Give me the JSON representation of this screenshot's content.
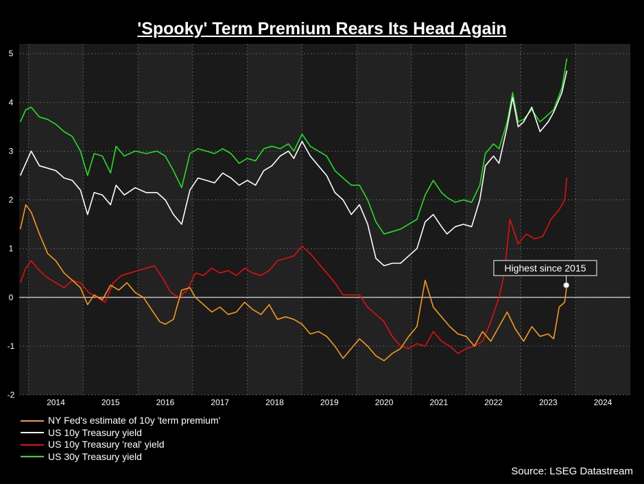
{
  "title": "'Spooky' Term Premium Rears Its Head Again",
  "source": "Source: LSEG Datastream",
  "colors": {
    "background": "#000000",
    "plot_bg": "#1a1a1a",
    "plot_bg_alt": "#222222",
    "grid": "#5a5a5a",
    "orange": "#f59a1e",
    "white": "#ffffff",
    "red": "#e01010",
    "green": "#22e022"
  },
  "chart_data": {
    "type": "line",
    "title": "'Spooky' Term Premium Rears Its Head Again",
    "xlabel": "",
    "ylabel": "",
    "xlim": [
      2013.33,
      2024.5
    ],
    "ylim": [
      -2,
      5.2
    ],
    "yticks": [
      -2,
      -1,
      0,
      1,
      2,
      3,
      4,
      5
    ],
    "ytick_labels": [
      "-2",
      "-1",
      "0",
      "1",
      "2",
      "3",
      "4",
      "5"
    ],
    "xticks": [
      2014,
      2015,
      2016,
      2017,
      2018,
      2019,
      2020,
      2021,
      2022,
      2023,
      2024
    ],
    "xtick_labels": [
      "2014",
      "2015",
      "2016",
      "2017",
      "2018",
      "2019",
      "2020",
      "2021",
      "2022",
      "2023",
      "2024"
    ],
    "grid": true,
    "legend_position": "bottom-left",
    "reference_line": {
      "y": 0
    },
    "annotation": {
      "text": "Highest since 2015",
      "x": 2023.33,
      "y": 0.25
    },
    "series": [
      {
        "name": "NY Fed's estimate of 10y 'term premium'",
        "color": "#f59a1e",
        "x": [
          2013.35,
          2013.45,
          2013.55,
          2013.7,
          2013.85,
          2014.0,
          2014.15,
          2014.3,
          2014.45,
          2014.58,
          2014.7,
          2014.85,
          2015.0,
          2015.15,
          2015.3,
          2015.45,
          2015.6,
          2015.75,
          2015.9,
          2016.0,
          2016.15,
          2016.3,
          2016.45,
          2016.55,
          2016.7,
          2016.85,
          2017.0,
          2017.15,
          2017.3,
          2017.45,
          2017.6,
          2017.75,
          2017.9,
          2018.05,
          2018.2,
          2018.35,
          2018.5,
          2018.65,
          2018.8,
          2018.95,
          2019.1,
          2019.25,
          2019.4,
          2019.55,
          2019.7,
          2019.85,
          2020.0,
          2020.15,
          2020.3,
          2020.45,
          2020.6,
          2020.75,
          2020.9,
          2021.05,
          2021.2,
          2021.35,
          2021.5,
          2021.65,
          2021.8,
          2021.95,
          2022.1,
          2022.25,
          2022.4,
          2022.55,
          2022.7,
          2022.85,
          2023.0,
          2023.1,
          2023.2,
          2023.3,
          2023.34
        ],
        "y": [
          1.4,
          1.9,
          1.75,
          1.3,
          0.9,
          0.75,
          0.5,
          0.35,
          0.2,
          -0.15,
          0.05,
          -0.05,
          0.25,
          0.15,
          0.3,
          0.1,
          0.0,
          -0.25,
          -0.5,
          -0.55,
          -0.45,
          0.15,
          0.2,
          0.0,
          -0.15,
          -0.3,
          -0.2,
          -0.35,
          -0.3,
          -0.1,
          -0.25,
          -0.35,
          -0.15,
          -0.45,
          -0.4,
          -0.45,
          -0.55,
          -0.75,
          -0.7,
          -0.8,
          -1.0,
          -1.25,
          -1.05,
          -0.85,
          -1.0,
          -1.2,
          -1.3,
          -1.15,
          -1.05,
          -0.8,
          -0.6,
          0.35,
          -0.2,
          -0.4,
          -0.6,
          -0.75,
          -0.8,
          -1.0,
          -0.7,
          -0.9,
          -0.6,
          -0.3,
          -0.65,
          -0.9,
          -0.6,
          -0.8,
          -0.75,
          -0.85,
          -0.2,
          -0.1,
          0.25
        ]
      },
      {
        "name": "US 10y Treasury yield",
        "color": "#ffffff",
        "x": [
          2013.35,
          2013.45,
          2013.55,
          2013.7,
          2013.85,
          2014.0,
          2014.15,
          2014.3,
          2014.45,
          2014.58,
          2014.7,
          2014.85,
          2015.0,
          2015.1,
          2015.25,
          2015.45,
          2015.65,
          2015.85,
          2016.0,
          2016.15,
          2016.3,
          2016.45,
          2016.6,
          2016.75,
          2016.9,
          2017.05,
          2017.2,
          2017.35,
          2017.5,
          2017.65,
          2017.8,
          2017.95,
          2018.1,
          2018.25,
          2018.35,
          2018.5,
          2018.65,
          2018.8,
          2018.95,
          2019.1,
          2019.25,
          2019.4,
          2019.55,
          2019.7,
          2019.85,
          2020.0,
          2020.15,
          2020.3,
          2020.45,
          2020.6,
          2020.75,
          2020.9,
          2021.05,
          2021.15,
          2021.3,
          2021.45,
          2021.6,
          2021.75,
          2021.85,
          2022.0,
          2022.1,
          2022.25,
          2022.35,
          2022.45,
          2022.55,
          2022.7,
          2022.85,
          2023.0,
          2023.1,
          2023.25,
          2023.34
        ],
        "y": [
          2.5,
          2.75,
          3.0,
          2.7,
          2.65,
          2.6,
          2.45,
          2.4,
          2.2,
          1.7,
          2.15,
          2.1,
          1.9,
          2.3,
          2.1,
          2.25,
          2.15,
          2.15,
          2.0,
          1.7,
          1.5,
          2.2,
          2.45,
          2.4,
          2.35,
          2.55,
          2.45,
          2.3,
          2.4,
          2.3,
          2.6,
          2.7,
          2.9,
          3.0,
          2.85,
          3.2,
          2.9,
          2.7,
          2.5,
          2.15,
          2.0,
          1.7,
          1.9,
          1.5,
          0.8,
          0.65,
          0.7,
          0.7,
          0.85,
          1.0,
          1.55,
          1.7,
          1.45,
          1.3,
          1.45,
          1.5,
          1.45,
          2.0,
          2.7,
          2.9,
          2.75,
          3.5,
          4.1,
          3.5,
          3.6,
          3.9,
          3.4,
          3.6,
          3.8,
          4.2,
          4.65
        ]
      },
      {
        "name": "US 10y Treasury 'real' yield",
        "color": "#e01010",
        "x": [
          2013.35,
          2013.45,
          2013.55,
          2013.7,
          2013.85,
          2014.0,
          2014.15,
          2014.3,
          2014.45,
          2014.6,
          2014.75,
          2014.9,
          2015.05,
          2015.2,
          2015.35,
          2015.5,
          2015.65,
          2015.8,
          2015.95,
          2016.1,
          2016.25,
          2016.4,
          2016.55,
          2016.7,
          2016.85,
          2017.0,
          2017.15,
          2017.3,
          2017.45,
          2017.6,
          2017.75,
          2017.9,
          2018.05,
          2018.2,
          2018.35,
          2018.5,
          2018.65,
          2018.8,
          2018.95,
          2019.1,
          2019.25,
          2019.4,
          2019.55,
          2019.7,
          2019.85,
          2020.0,
          2020.15,
          2020.3,
          2020.45,
          2020.6,
          2020.75,
          2020.9,
          2021.05,
          2021.2,
          2021.35,
          2021.5,
          2021.65,
          2021.8,
          2021.95,
          2022.1,
          2022.2,
          2022.3,
          2022.45,
          2022.6,
          2022.75,
          2022.9,
          2023.05,
          2023.2,
          2023.3,
          2023.34
        ],
        "y": [
          0.3,
          0.6,
          0.75,
          0.55,
          0.4,
          0.3,
          0.2,
          0.35,
          0.3,
          0.1,
          0.0,
          -0.1,
          0.3,
          0.45,
          0.5,
          0.55,
          0.6,
          0.65,
          0.4,
          0.1,
          0.0,
          0.15,
          0.5,
          0.45,
          0.6,
          0.5,
          0.55,
          0.45,
          0.6,
          0.5,
          0.45,
          0.55,
          0.75,
          0.8,
          0.85,
          1.05,
          0.9,
          0.7,
          0.5,
          0.3,
          0.05,
          0.05,
          0.05,
          -0.2,
          -0.35,
          -0.5,
          -0.8,
          -1.0,
          -1.05,
          -0.95,
          -1.0,
          -0.7,
          -0.9,
          -1.0,
          -1.15,
          -1.05,
          -1.0,
          -0.9,
          -0.5,
          0.0,
          0.5,
          1.6,
          1.1,
          1.3,
          1.2,
          1.25,
          1.6,
          1.8,
          2.0,
          2.45
        ]
      },
      {
        "name": "US 30y Treasury yield",
        "color": "#22e022",
        "x": [
          2013.35,
          2013.45,
          2013.55,
          2013.7,
          2013.85,
          2014.0,
          2014.15,
          2014.3,
          2014.45,
          2014.58,
          2014.7,
          2014.85,
          2015.0,
          2015.1,
          2015.25,
          2015.45,
          2015.65,
          2015.85,
          2016.0,
          2016.15,
          2016.3,
          2016.45,
          2016.6,
          2016.75,
          2016.9,
          2017.05,
          2017.2,
          2017.35,
          2017.5,
          2017.65,
          2017.8,
          2017.95,
          2018.1,
          2018.25,
          2018.35,
          2018.5,
          2018.65,
          2018.8,
          2018.95,
          2019.1,
          2019.25,
          2019.4,
          2019.55,
          2019.7,
          2019.85,
          2020.0,
          2020.15,
          2020.3,
          2020.45,
          2020.6,
          2020.75,
          2020.9,
          2021.05,
          2021.15,
          2021.3,
          2021.45,
          2021.6,
          2021.75,
          2021.85,
          2022.0,
          2022.1,
          2022.25,
          2022.35,
          2022.45,
          2022.55,
          2022.7,
          2022.85,
          2023.0,
          2023.1,
          2023.25,
          2023.34
        ],
        "y": [
          3.6,
          3.85,
          3.9,
          3.7,
          3.65,
          3.55,
          3.4,
          3.3,
          3.0,
          2.5,
          2.95,
          2.9,
          2.55,
          3.1,
          2.9,
          3.0,
          2.95,
          3.0,
          2.9,
          2.6,
          2.25,
          2.95,
          3.05,
          3.0,
          2.95,
          3.05,
          2.95,
          2.75,
          2.85,
          2.8,
          3.05,
          3.1,
          3.05,
          3.15,
          3.0,
          3.35,
          3.1,
          3.0,
          2.9,
          2.6,
          2.45,
          2.3,
          2.3,
          2.0,
          1.55,
          1.3,
          1.35,
          1.4,
          1.5,
          1.6,
          2.1,
          2.4,
          2.15,
          2.05,
          1.95,
          2.0,
          1.95,
          2.3,
          2.95,
          3.15,
          3.05,
          3.6,
          4.2,
          3.6,
          3.65,
          3.85,
          3.6,
          3.75,
          3.85,
          4.3,
          4.9
        ]
      }
    ]
  }
}
